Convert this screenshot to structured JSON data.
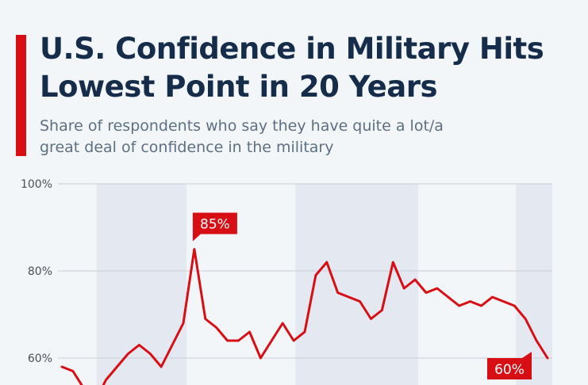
{
  "header": {
    "title": "U.S. Confidence in Military Hits Lowest Point in 20 Years",
    "subtitle": "Share of respondents who say they have quite a lot/a great deal of confidence in the military"
  },
  "colors": {
    "accent": "#d80e15",
    "title": "#152c4a",
    "subtitle": "#5d6f82",
    "band": "#e4e9f1",
    "background": "#f3f6f9"
  },
  "chart_data": {
    "type": "line",
    "title": "U.S. Confidence in Military Hits Lowest Point in 20 Years",
    "xlabel": "",
    "ylabel": "",
    "ylim": [
      50,
      100
    ],
    "yticks": [
      {
        "value": 100,
        "label": "100%"
      },
      {
        "value": 80,
        "label": "80%"
      },
      {
        "value": 60,
        "label": "60%"
      }
    ],
    "grid": true,
    "series": [
      {
        "values": [
          58,
          57,
          53,
          50,
          55,
          58,
          61,
          63,
          61,
          58,
          63,
          68,
          85,
          69,
          67,
          64,
          64,
          66,
          60,
          64,
          68,
          64,
          66,
          79,
          82,
          75,
          74,
          73,
          69,
          71,
          82,
          76,
          78,
          75,
          76,
          74,
          72,
          73,
          72,
          74,
          73,
          72,
          69,
          64,
          60
        ]
      }
    ],
    "annotations": [
      {
        "label": "85%",
        "value": 85,
        "index": 12
      },
      {
        "label": "60%",
        "value": 60,
        "index": 44
      }
    ],
    "shaded_bands": [
      [
        3,
        11
      ],
      [
        21,
        32
      ],
      [
        41,
        44
      ]
    ]
  }
}
